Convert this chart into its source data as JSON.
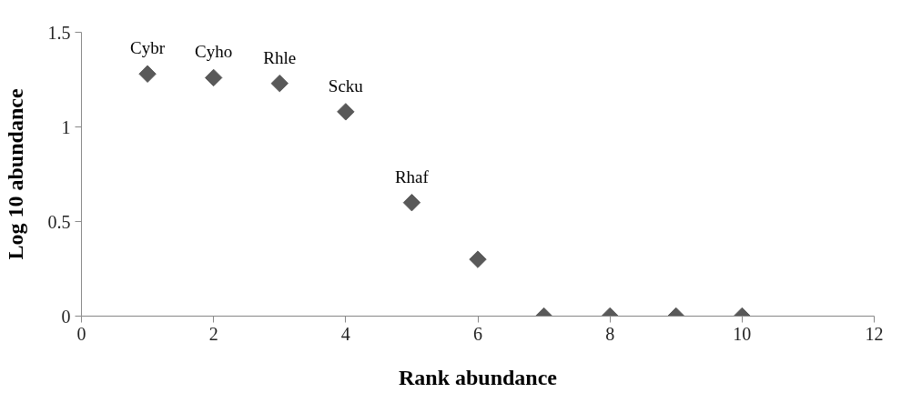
{
  "chart_data": {
    "type": "scatter",
    "xlabel": "Rank abundance",
    "ylabel": "Log 10 abundance",
    "x": [
      1,
      2,
      3,
      4,
      5,
      6,
      7,
      8,
      9,
      10
    ],
    "values": [
      1.28,
      1.26,
      1.23,
      1.08,
      0.6,
      0.3,
      0,
      0,
      0,
      0
    ],
    "color": "#595959",
    "marker": "diamond",
    "xlim": [
      0,
      12
    ],
    "xticks": [
      0,
      2,
      4,
      6,
      8,
      10,
      12
    ],
    "ylim": [
      0,
      1.5
    ],
    "yticks": [
      0,
      0.5,
      1,
      1.5
    ],
    "grid": false,
    "annotations": [
      {
        "text": "Cybr",
        "x": 1,
        "y": 1.28
      },
      {
        "text": "Cyho",
        "x": 2,
        "y": 1.26
      },
      {
        "text": "Rhle",
        "x": 3,
        "y": 1.23
      },
      {
        "text": "Scku",
        "x": 4,
        "y": 1.08
      },
      {
        "text": "Rhaf",
        "x": 5,
        "y": 0.6
      }
    ]
  }
}
